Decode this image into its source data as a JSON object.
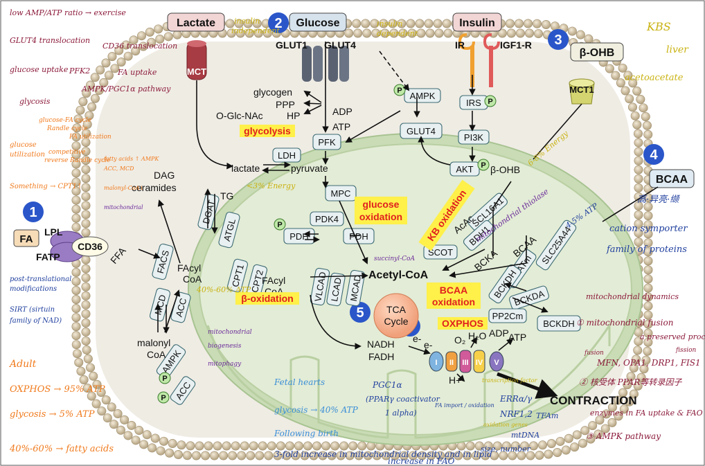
{
  "colors": {
    "membrane_bead": "#cdbfa6",
    "cytoplasm": "#efece4",
    "mito_outer": "#c9dcb6",
    "mito_inner": "#e3ecd6",
    "enzyme_box": "#e8f0f1",
    "highlight": "#fff04a",
    "number_badge": "#2a56c9",
    "handwriting_maroon": "#8b1a3a",
    "handwriting_olive": "#c9b211",
    "handwriting_blue": "#1f3f9e",
    "handwriting_orange": "#f07a1c",
    "handwriting_purple": "#6a2a9a"
  },
  "badges": [
    "1",
    "2",
    "3",
    "4",
    "5",
    "6"
  ],
  "inputs": {
    "lactate": "Lactate",
    "glucose": "Glucose",
    "insulin": "Insulin",
    "bohb": "β-OHB",
    "bcaa": "BCAA",
    "fa": "FA"
  },
  "transporters": {
    "mct": "MCT",
    "glut1": "GLUT1",
    "glut4": "GLUT4",
    "ir": "IR",
    "igf1r": "IGF1-R",
    "mct1": "MCT1",
    "lpl": "LPL",
    "fatp": "FATP",
    "cd36": "CD36"
  },
  "enzymes": {
    "ampk_top": "AMPK",
    "glut4_inner": "GLUT4",
    "irs": "IRS",
    "pi3k": "PI3K",
    "akt": "AKT",
    "pfk": "PFK",
    "ldh": "LDH",
    "mpc": "MPC",
    "pdk4": "PDK4",
    "pdh_left": "PDH",
    "pdh_right": "PDH",
    "dgat": "DGAT",
    "atgl": "ATGL",
    "facs": "FACS",
    "cpt1": "CPT1",
    "cpt2": "CPT2",
    "mcd": "MCD",
    "acc": "ACC",
    "ampk_bottom": "AMPK",
    "acc_bottom": "ACC",
    "vlcad": "VLCAD",
    "lcad": "LCAD",
    "mcad": "MCAD",
    "scl16a1": "SCL16A1",
    "bdh1": "BDH1",
    "scot": "SCOT",
    "slc25a44": "SLC25A44",
    "bcatm": "BCATm",
    "bckdh_left": "BCKDH",
    "bckda": "BCKDA",
    "pp2cm": "PP2Cm",
    "bckdh_right": "BCKDH",
    "p": "P"
  },
  "metabolites": {
    "glycogen": "glycogen",
    "ppp": "PPP",
    "hp": "HP",
    "oglcnac": "O-Glc-NAc",
    "adp": "ADP",
    "atp": "ATP",
    "lactate": "lactate",
    "pyruvate": "pyruvate",
    "dag": "DAG",
    "ceramides": "ceramides",
    "tg": "TG",
    "facyl_coa_a": "FAcyl",
    "facyl_coa_b": "CoA",
    "facyl2_a": "FAcyl",
    "facyl2_b": "CoA",
    "ffa": "FFA",
    "malonyl_a": "malonyl",
    "malonyl_b": "CoA",
    "acetyl_coa": "Acetyl-CoA",
    "bohb": "β-OHB",
    "acac": "AcAc",
    "bcaa": "BCAA",
    "bcka": "BCKA",
    "nadh": "NADH",
    "fadh": "FADH",
    "tca_a": "TCA",
    "tca_b": "Cycle",
    "eminus1": "e-",
    "eminus2": "e-",
    "o2": "O₂",
    "h2o": "H₂O",
    "adp2": "ADP",
    "atp2": "ATP",
    "hplus": "H+",
    "complex1": "I",
    "complex2": "II",
    "complex3": "III",
    "complex4": "IV",
    "complex5": "V",
    "contraction": "CONTRACTION"
  },
  "pathway_labels": {
    "glycolysis": "glycolysis",
    "glucose_oxidation_a": "glucose",
    "glucose_oxidation_b": "oxidation",
    "kb_oxidation": "KB oxidation",
    "beta_oxidation": "β-oxidation",
    "bcaa_oxidation_a": "BCAA",
    "bcaa_oxidation_b": "oxidation",
    "oxphos": "OXPHOS"
  },
  "notes": {
    "amp_ratio": "low AMP/ATP ratio → exercise",
    "glut4_translocation": "GLUT4 translocation",
    "cd36_translocation": "CD36 translocation",
    "glucose_uptake": "glucose uptake",
    "pfk2": "PFK2",
    "fa_uptake": "FA uptake",
    "ampk_pgc1a": "AMPK/PGC1α pathway",
    "glycosis": "glycosis",
    "glucose_fa_cycle_a": "glucose-FA cycle",
    "glucose_fa_cycle_b": "Randle cycle",
    "fa_utilization": "FA utilization",
    "glucose_utilization_a": "glucose",
    "glucose_utilization_b": "utilization",
    "competitive": "competitive",
    "reverse_randle": "reverse Randle cycle",
    "fatty_acids_acc": "fatty acids ↑ AMPK",
    "acc_mcd": "ACC, MCD",
    "malonyl_coa_down": "malonyl-CoA↓",
    "something_cpt1": "Something → CPT1↑",
    "mitochondrial": "mitochondrial",
    "insulin_independent_a": "insulin",
    "insulin_independent_b": "independent",
    "insulin_dependent_a": "insulin",
    "insulin_dependent_b": "dependent",
    "kbs": "KBS",
    "liver": "liver",
    "acetoacetate": "acetoacetate",
    "energy_68": "6-8% Energy",
    "energy_3": "<3% Energy",
    "mito_thiolase": "mitochondrial thiolase",
    "atp_45": "4-5% ATP",
    "chinese_note": "高·异亮·缬",
    "cation_symporter": "cation symporter",
    "family_proteins": "family of proteins",
    "succinyl_coa": "succinyl-CoA",
    "atp_4060": "40%-60% ATP",
    "post_translational": "post-translational",
    "modifications": "modifications",
    "sirt": "SIRT (sirtuin",
    "family_nad": "family of NAD)",
    "mito_biogenesis_a": "mitochondrial",
    "mito_biogenesis_b": "biogenesis",
    "mitophagy": "mitophagy",
    "adult": "Adult",
    "oxphos_95": "OXPHOS → 95% ATP",
    "glycosis_5": "glycosis → 5% ATP",
    "fatty_4060": "40%-60% → fatty acids",
    "fetal_hearts": "Fetal hearts",
    "glycosis_40": "glycosis → 40% ATP",
    "following_birth": "Following birth",
    "three_fold": "3-fold increase in mitochondrial density and in lipid",
    "increase_fao": "increase in FAO",
    "size_number": "size, number",
    "pgc1a": "PGC1α",
    "pparg_coactivator_a": "(PPARγ coactivator",
    "pparg_coactivator_b": "1 alpha)",
    "fa_import": "FA import / oxidation",
    "err": "ERRα/γ",
    "nrf": "NRF1,2",
    "tfam": "TFAm",
    "mtdna": "mtDNA",
    "oxidation_genes": "oxidation genes",
    "mito_dynamics": "mitochondrial dynamics",
    "mito_fusion": "① mitochondrial fusion",
    "preserved": "a preserved process",
    "fission": "fission",
    "fusion_small": "fusion",
    "mfn": "MFN, OPA1, DRP1, FIS1",
    "nuclear_ppar": "② 核受体 PPAR等转录因子",
    "enzymes_fa": "enzymes in FA uptake & FAO",
    "ampk_pathway": "③ AMPK pathway",
    "transcription": "transcription factor",
    "dash_n": "n"
  }
}
